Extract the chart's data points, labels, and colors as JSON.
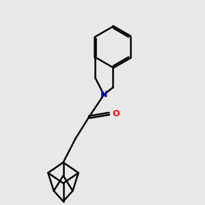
{
  "background_color": "#e8e8e8",
  "bond_color": "#000000",
  "nitrogen_color": "#0000cc",
  "oxygen_color": "#ff0000",
  "bond_width": 1.8,
  "figsize": [
    3.0,
    3.0
  ],
  "dpi": 100
}
